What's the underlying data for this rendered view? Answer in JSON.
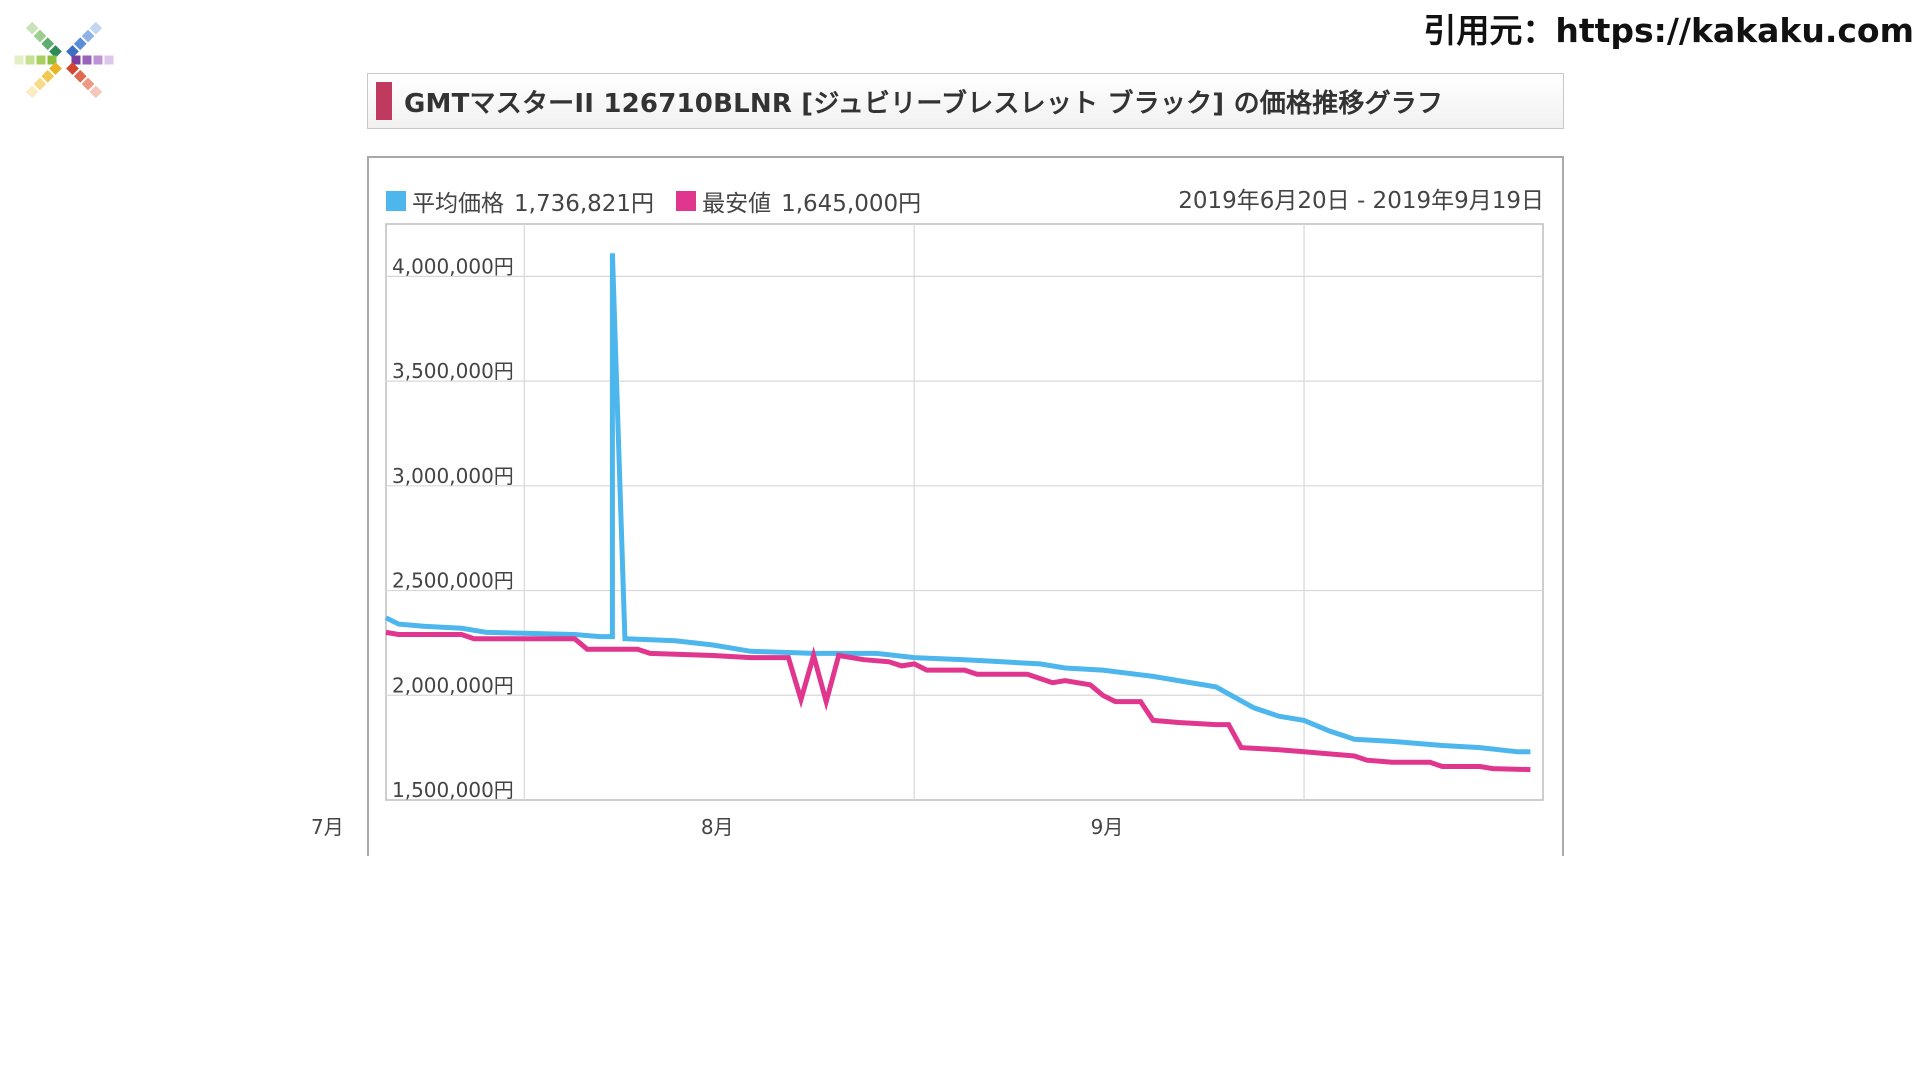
{
  "source": "引用元：https://kakaku.com",
  "logo": {
    "icon": "kakaku-logo-icon"
  },
  "title": "GMTマスターII 126710BLNR [ジュビリーブレスレット ブラック] の価格推移グラフ",
  "colors": {
    "avg": "#4db6ec",
    "min": "#e0368e",
    "title_bar": "#c0395e",
    "grid": "#d8d8d8"
  },
  "legend": {
    "avg_label": "平均価格",
    "avg_value": "1,736,821円",
    "min_label": "最安値",
    "min_value": "1,645,000円"
  },
  "period": "2019年6月20日 - 2019年9月19日",
  "chart_data": {
    "type": "line",
    "title": "GMTマスターII 126710BLNR [ジュビリーブレスレット ブラック] の価格推移グラフ",
    "xlabel": "",
    "ylabel": "",
    "ylim": [
      1500000,
      4250000
    ],
    "x_range": [
      "2019-06-20",
      "2019-09-20"
    ],
    "y_ticks": [
      1500000,
      2000000,
      2500000,
      3000000,
      3500000,
      4000000
    ],
    "y_tick_labels": [
      "1,500,000円",
      "2,000,000円",
      "2,500,000円",
      "3,000,000円",
      "3,500,000円",
      "4,000,000円"
    ],
    "x_ticks": [
      {
        "date": "2019-07-01",
        "label": "7月"
      },
      {
        "date": "2019-08-01",
        "label": "8月"
      },
      {
        "date": "2019-09-01",
        "label": "9月"
      }
    ],
    "grid": true,
    "legend_position": "top-left",
    "series": [
      {
        "name": "平均価格",
        "color": "#4db6ec",
        "points": [
          [
            "2019-06-20",
            2370000
          ],
          [
            "2019-06-21",
            2340000
          ],
          [
            "2019-06-23",
            2330000
          ],
          [
            "2019-06-26",
            2320000
          ],
          [
            "2019-06-28",
            2300000
          ],
          [
            "2019-07-05",
            2290000
          ],
          [
            "2019-07-07",
            2280000
          ],
          [
            "2019-07-08",
            2280000
          ],
          [
            "2019-07-08",
            4110000
          ],
          [
            "2019-07-09",
            2270000
          ],
          [
            "2019-07-13",
            2260000
          ],
          [
            "2019-07-16",
            2240000
          ],
          [
            "2019-07-19",
            2210000
          ],
          [
            "2019-07-24",
            2200000
          ],
          [
            "2019-07-29",
            2200000
          ],
          [
            "2019-08-01",
            2180000
          ],
          [
            "2019-08-05",
            2170000
          ],
          [
            "2019-08-08",
            2160000
          ],
          [
            "2019-08-11",
            2150000
          ],
          [
            "2019-08-13",
            2130000
          ],
          [
            "2019-08-16",
            2120000
          ],
          [
            "2019-08-20",
            2090000
          ],
          [
            "2019-08-22",
            2070000
          ],
          [
            "2019-08-25",
            2040000
          ],
          [
            "2019-08-28",
            1940000
          ],
          [
            "2019-08-30",
            1900000
          ],
          [
            "2019-09-01",
            1880000
          ],
          [
            "2019-09-03",
            1830000
          ],
          [
            "2019-09-05",
            1790000
          ],
          [
            "2019-09-08",
            1780000
          ],
          [
            "2019-09-12",
            1760000
          ],
          [
            "2019-09-15",
            1750000
          ],
          [
            "2019-09-18",
            1730000
          ],
          [
            "2019-09-19",
            1730000
          ]
        ]
      },
      {
        "name": "最安値",
        "color": "#e0368e",
        "points": [
          [
            "2019-06-20",
            2300000
          ],
          [
            "2019-06-21",
            2290000
          ],
          [
            "2019-06-26",
            2290000
          ],
          [
            "2019-06-27",
            2270000
          ],
          [
            "2019-07-05",
            2270000
          ],
          [
            "2019-07-06",
            2220000
          ],
          [
            "2019-07-10",
            2220000
          ],
          [
            "2019-07-11",
            2200000
          ],
          [
            "2019-07-16",
            2190000
          ],
          [
            "2019-07-19",
            2180000
          ],
          [
            "2019-07-22",
            2180000
          ],
          [
            "2019-07-23",
            1980000
          ],
          [
            "2019-07-24",
            2190000
          ],
          [
            "2019-07-25",
            1970000
          ],
          [
            "2019-07-26",
            2190000
          ],
          [
            "2019-07-28",
            2170000
          ],
          [
            "2019-07-30",
            2160000
          ],
          [
            "2019-07-31",
            2140000
          ],
          [
            "2019-08-01",
            2150000
          ],
          [
            "2019-08-02",
            2120000
          ],
          [
            "2019-08-05",
            2120000
          ],
          [
            "2019-08-06",
            2100000
          ],
          [
            "2019-08-10",
            2100000
          ],
          [
            "2019-08-12",
            2060000
          ],
          [
            "2019-08-13",
            2070000
          ],
          [
            "2019-08-15",
            2050000
          ],
          [
            "2019-08-16",
            2000000
          ],
          [
            "2019-08-17",
            1970000
          ],
          [
            "2019-08-19",
            1970000
          ],
          [
            "2019-08-20",
            1880000
          ],
          [
            "2019-08-22",
            1870000
          ],
          [
            "2019-08-25",
            1860000
          ],
          [
            "2019-08-26",
            1860000
          ],
          [
            "2019-08-27",
            1750000
          ],
          [
            "2019-08-30",
            1740000
          ],
          [
            "2019-09-01",
            1730000
          ],
          [
            "2019-09-03",
            1720000
          ],
          [
            "2019-09-05",
            1710000
          ],
          [
            "2019-09-06",
            1690000
          ],
          [
            "2019-09-08",
            1680000
          ],
          [
            "2019-09-11",
            1680000
          ],
          [
            "2019-09-12",
            1660000
          ],
          [
            "2019-09-15",
            1660000
          ],
          [
            "2019-09-16",
            1650000
          ],
          [
            "2019-09-19",
            1645000
          ]
        ]
      }
    ]
  }
}
